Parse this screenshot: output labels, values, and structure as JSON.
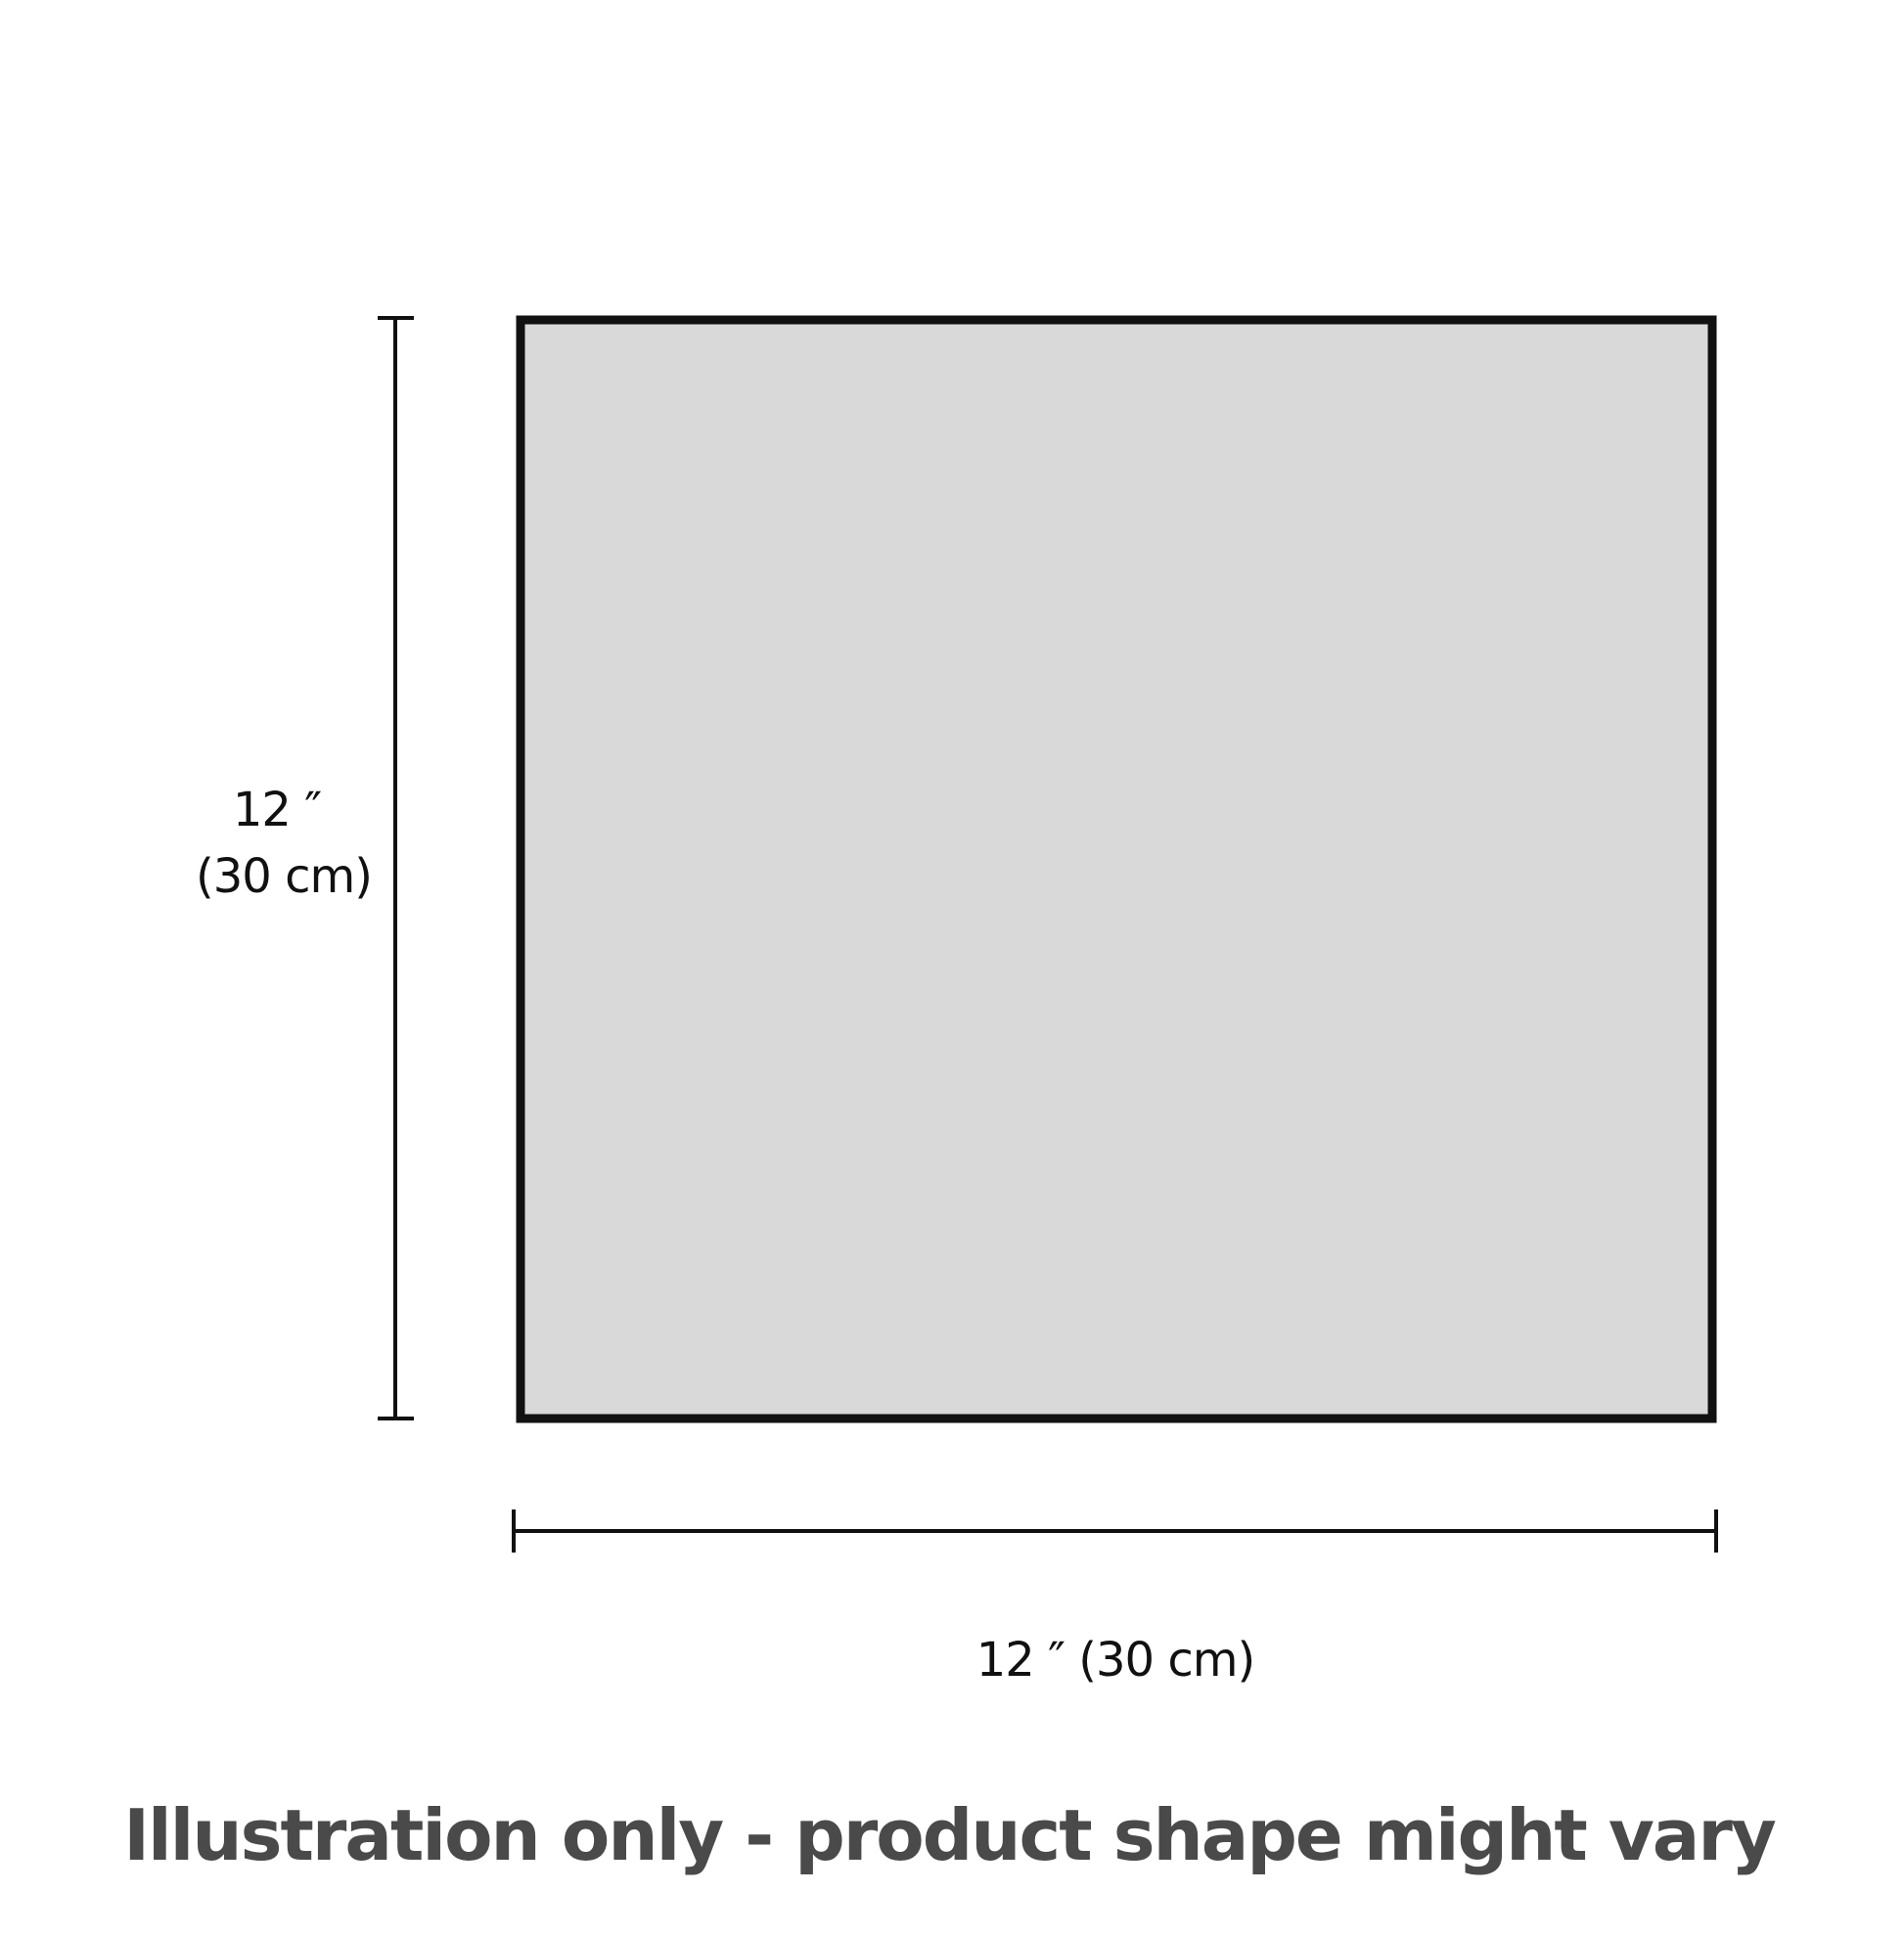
{
  "colors": {
    "fill": "#d9d9d9",
    "stroke": "#111111",
    "caption": "#4a4a4a"
  },
  "dimensions": {
    "height_label_line1": "12 ″",
    "height_label_line2": "(30 cm)",
    "width_label": "12 ″ (30 cm)"
  },
  "caption": "Illustration only - product shape might vary"
}
